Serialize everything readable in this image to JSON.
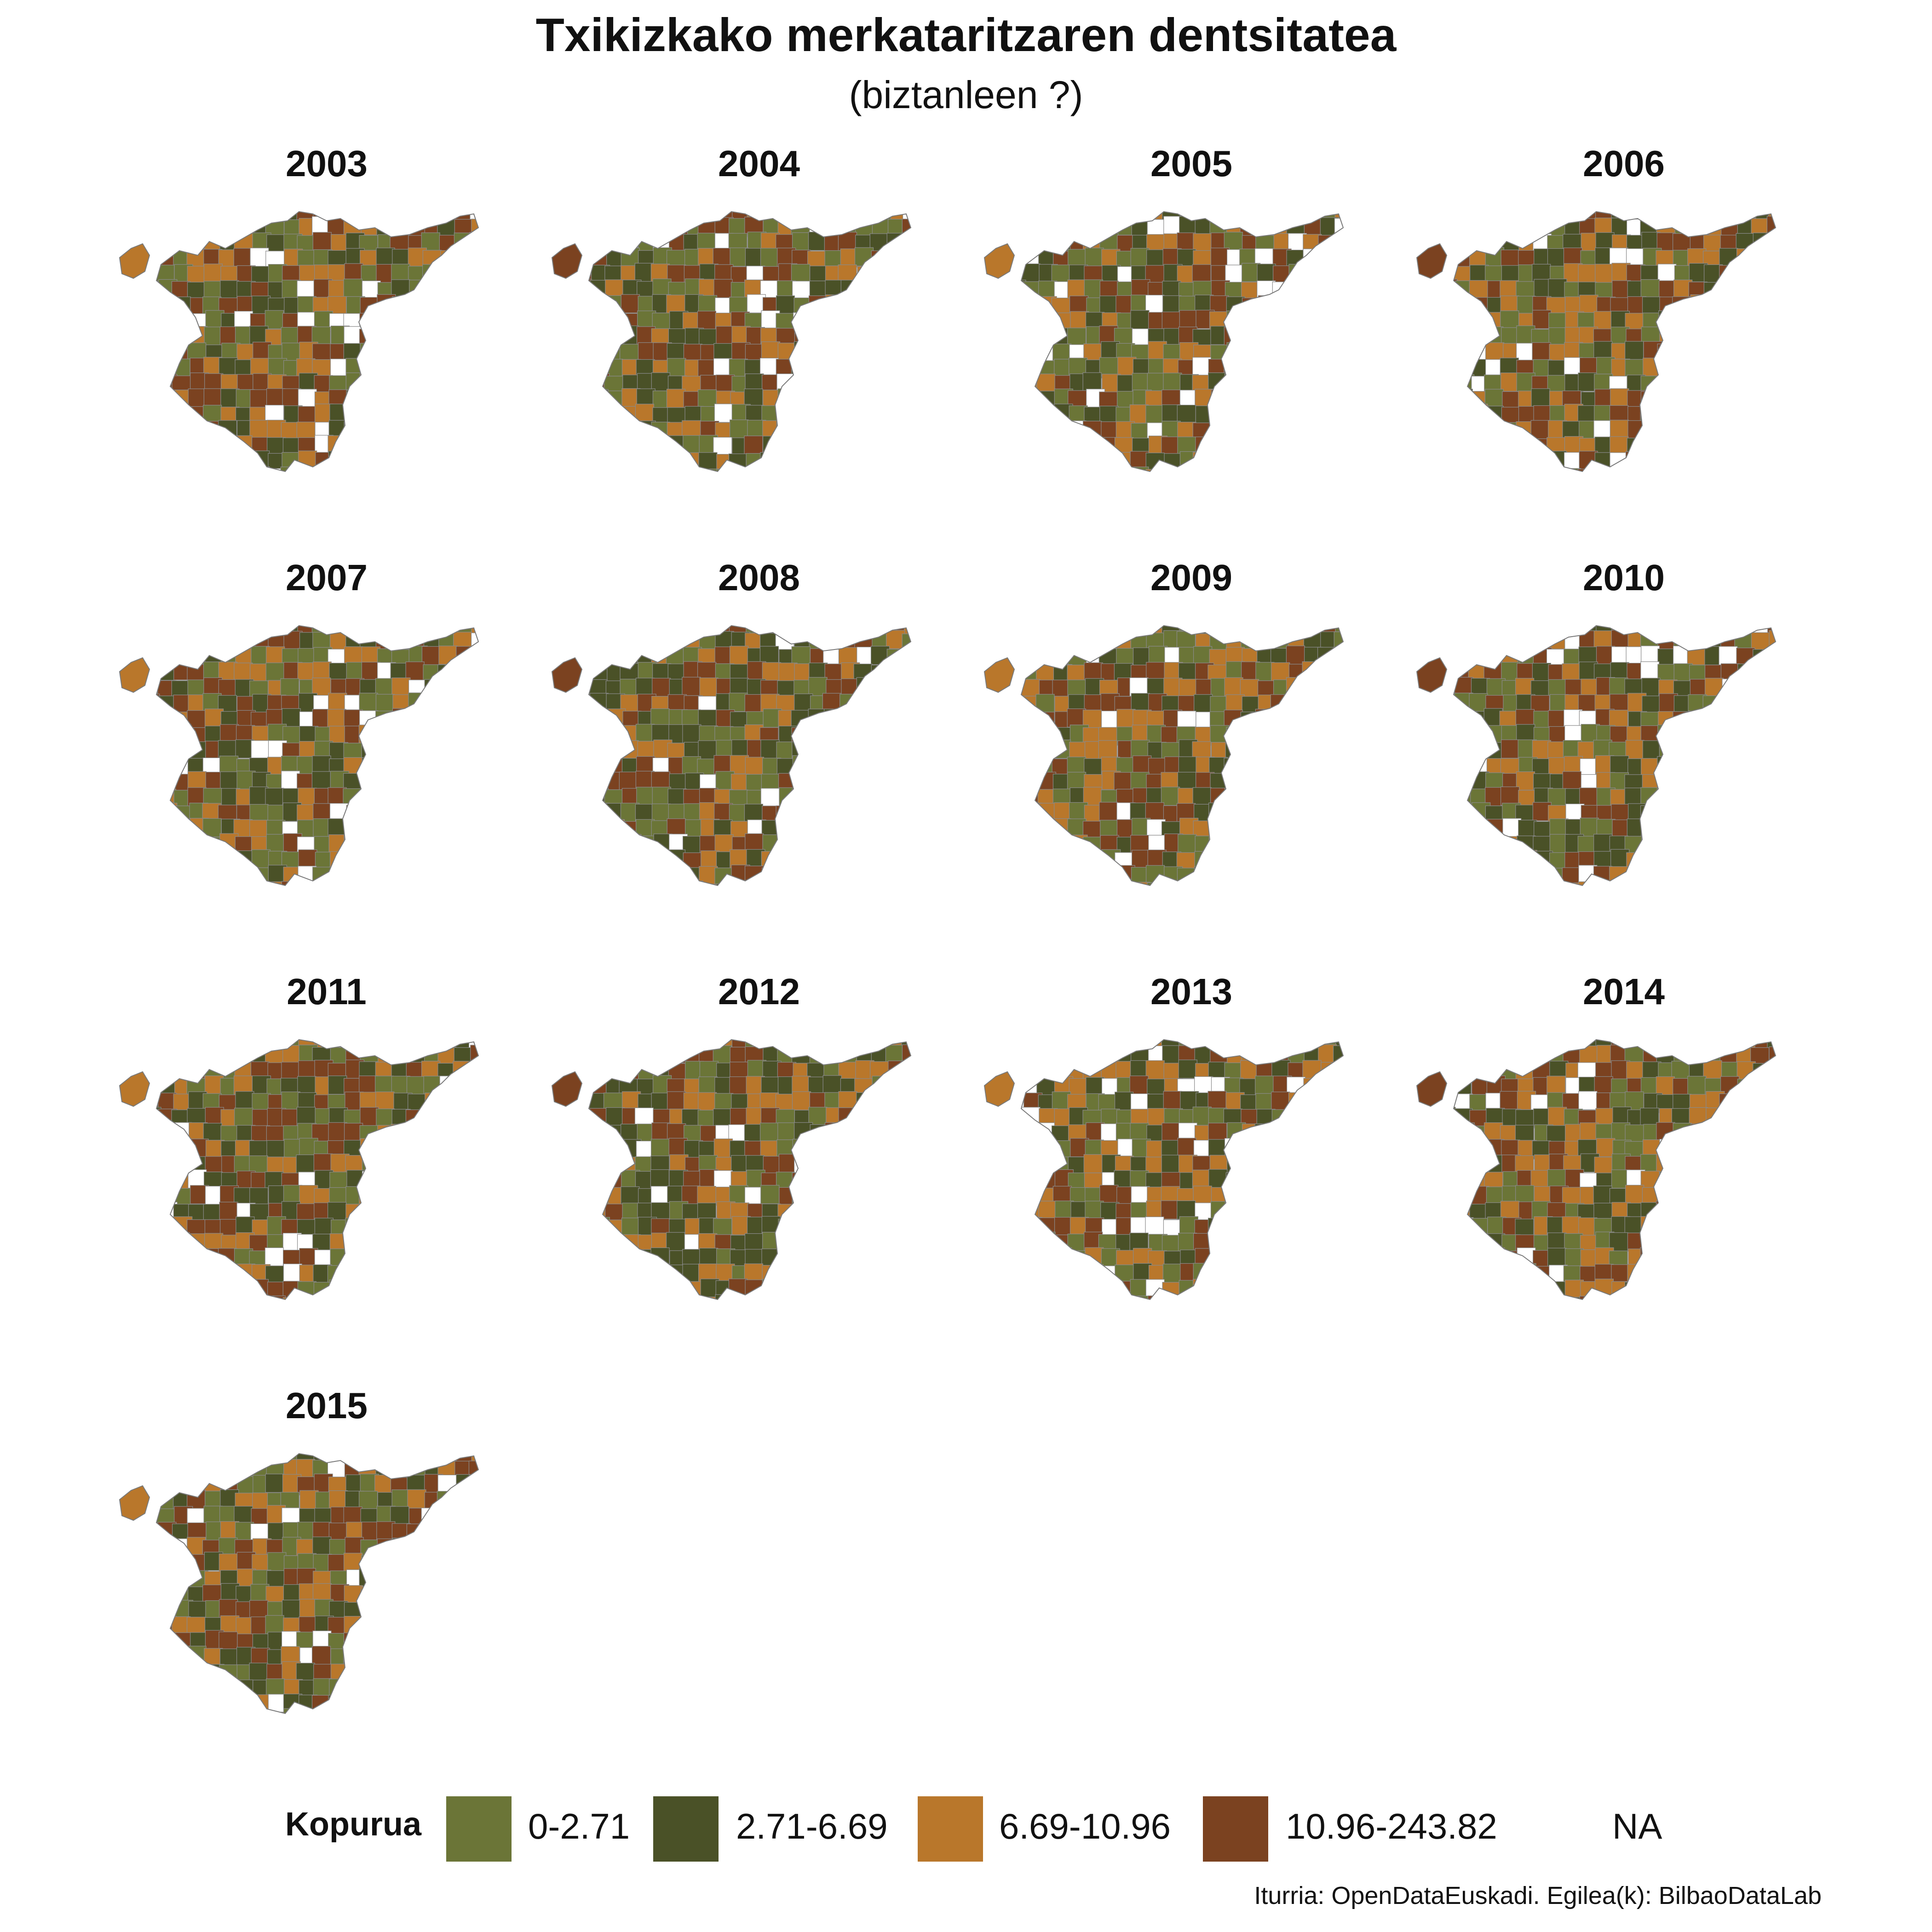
{
  "title": "Txikizkako merkataritzaren dentsitatea",
  "subtitle": "(biztanleen ?)",
  "legend": {
    "title": "Kopurua",
    "items": [
      {
        "label": "0-2.71",
        "color": "#6b7537"
      },
      {
        "label": "2.71-6.69",
        "color": "#4a5127"
      },
      {
        "label": "6.69-10.96",
        "color": "#b9772b"
      },
      {
        "label": "10.96-243.82",
        "color": "#7b4220"
      },
      {
        "label": "NA",
        "color": "#ffffff"
      }
    ]
  },
  "caption": "Iturria: OpenDataEuskadi. Egilea(k): BilbaoDataLab",
  "panels": [
    {
      "year": "2003"
    },
    {
      "year": "2004"
    },
    {
      "year": "2005"
    },
    {
      "year": "2006"
    },
    {
      "year": "2007"
    },
    {
      "year": "2008"
    },
    {
      "year": "2009"
    },
    {
      "year": "2010"
    },
    {
      "year": "2011"
    },
    {
      "year": "2012"
    },
    {
      "year": "2013"
    },
    {
      "year": "2014"
    },
    {
      "year": "2015"
    }
  ]
}
